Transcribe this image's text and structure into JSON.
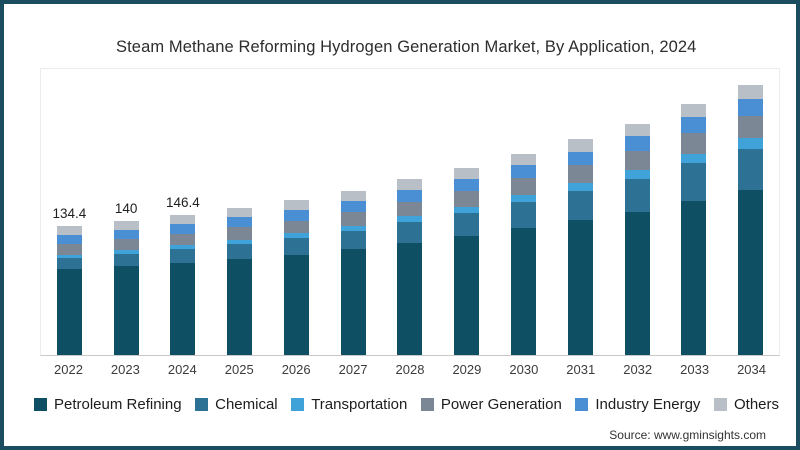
{
  "title": "Steam Methane Reforming Hydrogen Generation Market, By Application, 2024",
  "source": "Source: www.gminsights.com",
  "frame_border_color": "#1b4d61",
  "chart_data": {
    "type": "bar",
    "stacked": true,
    "title": "Steam Methane Reforming Hydrogen Generation Market, By Application, 2024",
    "xlabel": "",
    "ylabel": "",
    "grid": false,
    "legend_position": "bottom",
    "categories": [
      "2022",
      "2023",
      "2024",
      "2025",
      "2026",
      "2027",
      "2028",
      "2029",
      "2030",
      "2031",
      "2032",
      "2033",
      "2034"
    ],
    "series": [
      {
        "name": "Petroleum Refining",
        "color": "#0e4f63",
        "values": [
          89.7,
          92.7,
          96.3,
          100.2,
          104.7,
          110.0,
          116.8,
          123.6,
          132.1,
          140.2,
          149.3,
          160.8,
          171.5
        ]
      },
      {
        "name": "Chemical",
        "color": "#2d7294",
        "values": [
          11.4,
          12.7,
          14.1,
          15.7,
          17.4,
          19.5,
          21.9,
          24.4,
          27.5,
          30.7,
          34.3,
          38.8,
          43.3
        ]
      },
      {
        "name": "Transportation",
        "color": "#3fa3da",
        "values": [
          3.4,
          3.7,
          4.0,
          4.4,
          4.8,
          5.3,
          5.9,
          6.6,
          7.4,
          8.1,
          9.0,
          10.1,
          11.2
        ]
      },
      {
        "name": "Power Generation",
        "color": "#7b8794",
        "values": [
          11.0,
          11.5,
          12.0,
          12.6,
          13.2,
          14.0,
          15.0,
          16.0,
          17.2,
          18.4,
          19.8,
          21.4,
          23.0
        ]
      },
      {
        "name": "Industry Energy",
        "color": "#4a8fd3",
        "values": [
          9.8,
          10.1,
          10.4,
          10.8,
          11.2,
          11.7,
          12.4,
          13.0,
          13.8,
          14.5,
          15.4,
          16.5,
          17.4
        ]
      },
      {
        "name": "Others",
        "color": "#b8bfc7",
        "values": [
          9.1,
          9.3,
          9.6,
          9.8,
          10.2,
          10.5,
          11.0,
          11.4,
          12.0,
          12.6,
          13.2,
          13.9,
          14.6
        ]
      }
    ],
    "totals": [
      134.4,
      140.0,
      146.4,
      153.5,
      161.5,
      171.0,
      183.0,
      195.0,
      210.0,
      224.5,
      241.0,
      261.5,
      281.0
    ],
    "data_labels": {
      "2022": "134.4",
      "2023": "140",
      "2024": "146.4"
    }
  }
}
